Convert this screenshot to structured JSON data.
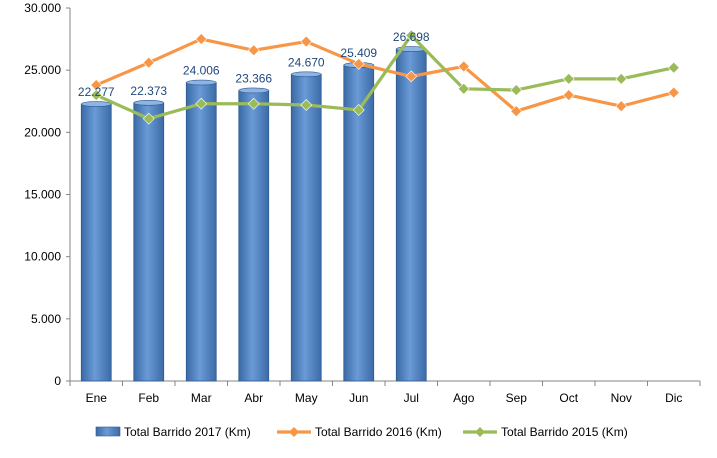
{
  "chart_data": {
    "type": "bar",
    "categories": [
      "Ene",
      "Feb",
      "Mar",
      "Abr",
      "May",
      "Jun",
      "Jul",
      "Ago",
      "Sep",
      "Oct",
      "Nov",
      "Dic"
    ],
    "ylim": [
      0,
      30000
    ],
    "yticks": [
      0,
      5000,
      10000,
      15000,
      20000,
      25000,
      30000
    ],
    "ytick_labels": [
      "0",
      "5.000",
      "10.000",
      "15.000",
      "20.000",
      "25.000",
      "30.000"
    ],
    "grid": false,
    "legend_position": "bottom",
    "series": [
      {
        "name": "Total Barrido 2017 (Km)",
        "type": "bar",
        "color": "#4f81bd",
        "values": [
          22277,
          22373,
          24006,
          23366,
          24670,
          25409,
          26698,
          null,
          null,
          null,
          null,
          null
        ],
        "data_labels": [
          "22.277",
          "22.373",
          "24.006",
          "23.366",
          "24.670",
          "25.409",
          "26.698",
          null,
          null,
          null,
          null,
          null
        ]
      },
      {
        "name": "Total Barrido 2016 (Km)",
        "type": "line",
        "color": "#f79646",
        "values": [
          23800,
          25600,
          27500,
          26600,
          27300,
          25500,
          24500,
          25300,
          21700,
          23000,
          22100,
          23200
        ]
      },
      {
        "name": "Total Barrido 2015 (Km)",
        "type": "line",
        "color": "#9bbb59",
        "values": [
          23000,
          21100,
          22300,
          22300,
          22200,
          21800,
          27800,
          23500,
          23400,
          24300,
          24300,
          25200
        ]
      }
    ]
  }
}
